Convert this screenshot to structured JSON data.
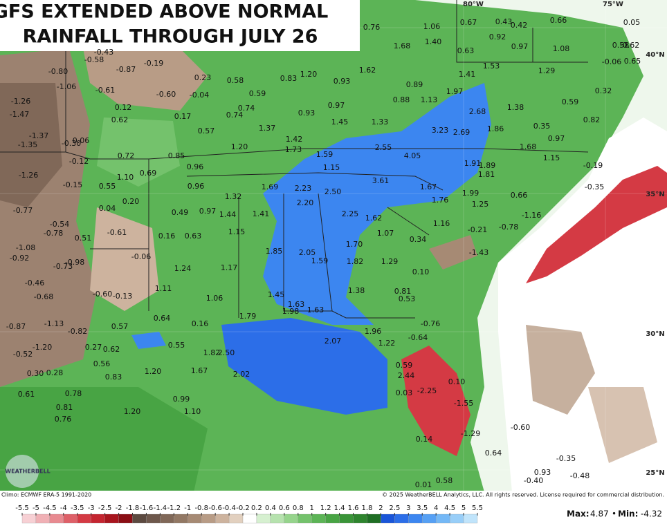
{
  "header": {
    "title": [
      "GFS EXTENDED ABOVE NORMAL",
      "RAINFALL THROUGH JULY 26"
    ]
  },
  "map_labels": {
    "values": [
      "-0.43",
      "-0.58",
      "-0.87",
      "-0.19",
      "-0.80",
      "-1.06",
      "-0.61",
      "-0.60",
      "-0.04",
      "0.23",
      "0.58",
      "0.83",
      "1.20",
      "0.59",
      "0.74",
      "0.74",
      "0.93",
      "0.97",
      "1.45",
      "1.33",
      "0.93",
      "1.62",
      "1.68",
      "1.40",
      "1.06",
      "0.76",
      "0.67",
      "0.43",
      "0.42",
      "0.66",
      "0.92",
      "0.97",
      "1.08",
      "0.63",
      "1.53",
      "1.41",
      "1.29",
      "0.89",
      "0.88",
      "1.13",
      "1.97",
      "2.68",
      "1.86",
      "2.69",
      "3.23",
      "1.38",
      "0.35",
      "0.97",
      "1.68",
      "1.15",
      "4.05",
      "2.55",
      "1.91",
      "1.89",
      "1.81",
      "1.99",
      "1.67",
      "1.76",
      "1.25",
      "0.66",
      "3.61",
      "2.50",
      "2.20",
      "2.23",
      "1.69",
      "1.59",
      "1.15",
      "1.42",
      "1.73",
      "1.37",
      "1.20",
      "0.57",
      "0.85",
      "0.96",
      "0.96",
      "1.32",
      "1.44",
      "1.41",
      "0.97",
      "0.49",
      "0.63",
      "0.16",
      "1.15",
      "2.25",
      "1.62",
      "1.07",
      "0.34",
      "1.16",
      "-0.21",
      "-0.78",
      "-1.16",
      "1.70",
      "1.82",
      "1.85",
      "2.05",
      "1.59",
      "1.29",
      "0.10",
      "1.17",
      "1.24",
      "1.11",
      "1.06",
      "1.45",
      "1.38",
      "0.81",
      "0.53",
      "1.63",
      "1.98",
      "1.63",
      "1.79",
      "0.64",
      "0.16",
      "0.57",
      "-1.13",
      "-0.82",
      "-0.87",
      "-1.20",
      "-0.52",
      "0.27",
      "0.62",
      "0.55",
      "1.82",
      "2.50",
      "2.07",
      "1.96",
      "1.22",
      "-0.64",
      "-0.76",
      "0.59",
      "2.44",
      "-2.25",
      "0.03",
      "0.10",
      "-1.55",
      "-1.29",
      "0.14",
      "0.64",
      "0.56",
      "0.83",
      "1.20",
      "1.67",
      "2.02",
      "0.30",
      "0.28",
      "0.61",
      "0.78",
      "0.81",
      "0.76",
      "1.20",
      "0.99",
      "1.10",
      "-1.26",
      "-1.47",
      "-1.37",
      "-1.35",
      "-0.30",
      "0.06",
      "-0.12",
      "-1.26",
      "-0.15",
      "0.55",
      "0.72",
      "1.10",
      "0.69",
      "0.20",
      "0.04",
      "0.62",
      "0.12",
      "0.17",
      "-0.77",
      "-0.54",
      "-0.78",
      "0.51",
      "-0.61",
      "-1.08",
      "-0.92",
      "-0.73",
      "-0.98",
      "-0.06",
      "-0.46",
      "-0.68",
      "-0.60",
      "-0.13",
      "0.32",
      "0.59",
      "0.82",
      "-0.06",
      "0.65",
      "0.05",
      "0.58",
      "-0.62",
      "-0.35",
      "-0.19",
      "-1.43",
      "-0.60",
      "-0.35",
      "0.93",
      "-0.48",
      "-0.40",
      "0.58",
      "0.01"
    ]
  },
  "grid_labels": {
    "lat": [
      "40°N",
      "35°N",
      "30°N",
      "25°N"
    ],
    "lon": [
      "80°W",
      "75°W"
    ]
  },
  "logo": "WEATHERBELL",
  "footer": {
    "climo": "Climo: ECMWF ERA-5 1991-2020",
    "copyright": "© 2025 WeatherBELL Analytics, LLC. All rights reserved. License required for commercial distribution.",
    "max_label": "Max:",
    "max": 4.87,
    "separator": "•",
    "min_label": "Min:",
    "min": -4.32
  },
  "colorbar": {
    "ticks": [
      -5.5,
      -5,
      -4.5,
      -4,
      -3.5,
      -3,
      -2.5,
      -2,
      -1.8,
      -1.6,
      -1.4,
      -1.2,
      -1,
      -0.8,
      -0.6,
      -0.4,
      -0.2,
      0.2,
      0.4,
      0.6,
      0.8,
      1,
      1.2,
      1.4,
      1.6,
      1.8,
      2,
      2.5,
      3,
      3.5,
      4,
      4.5,
      5,
      5.5
    ],
    "colors": [
      "#f7d0d4",
      "#f0b0b5",
      "#e88a90",
      "#de6068",
      "#d43a44",
      "#c42530",
      "#a8151e",
      "#8a0e14",
      "#5c4a40",
      "#6e584c",
      "#806858",
      "#927864",
      "#a68a74",
      "#b89c86",
      "#cdb39e",
      "#e2d0bf",
      "#ffffff",
      "#d6f0d0",
      "#b6e2ae",
      "#96d48c",
      "#74c26c",
      "#5cb456",
      "#48a444",
      "#3a9438",
      "#2e842e",
      "#1f6e24",
      "#1a55d8",
      "#2c6ee8",
      "#3c86f0",
      "#56a0f4",
      "#74b8f6",
      "#98cef8",
      "#c0e4fb"
    ]
  }
}
